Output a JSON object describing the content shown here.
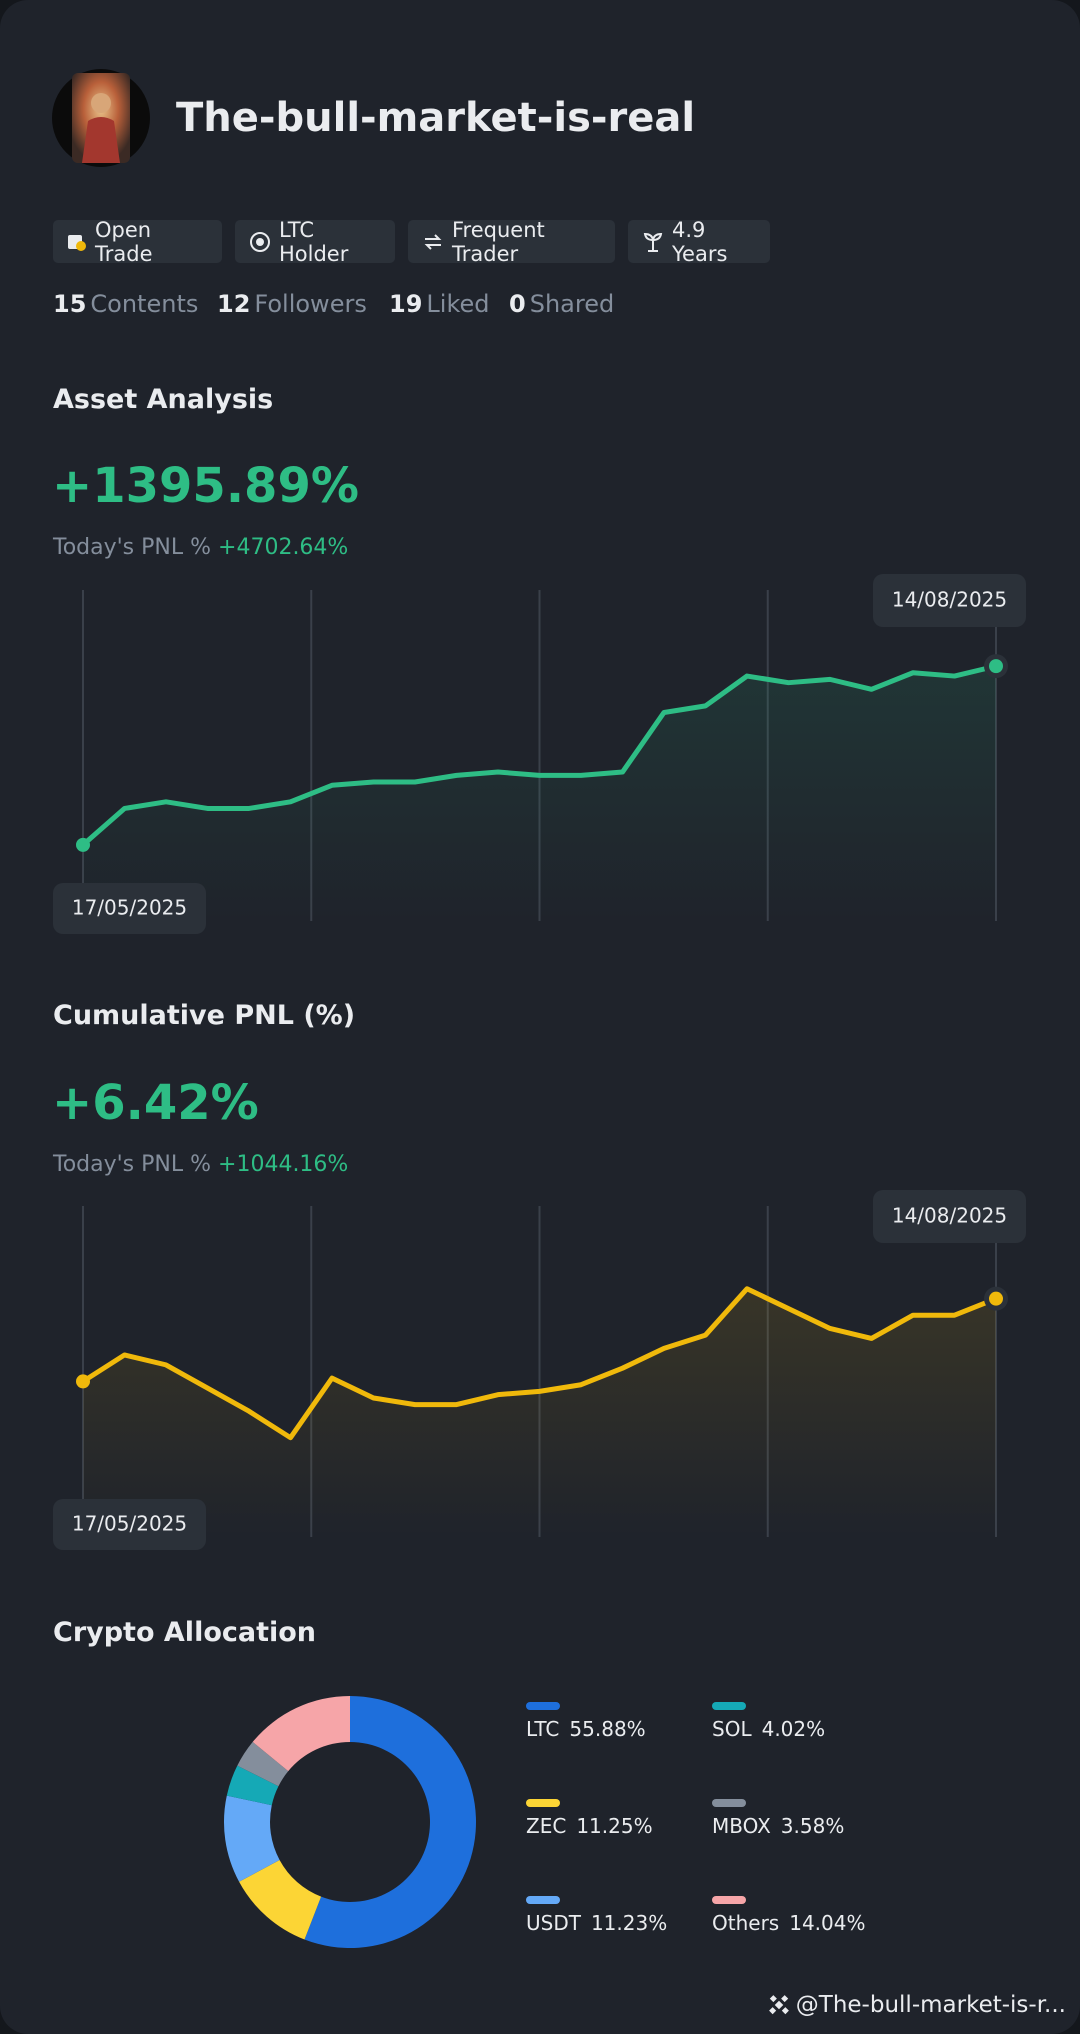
{
  "header": {
    "username": "The-bull-market-is-real"
  },
  "badges": [
    "Open Trade",
    "LTC Holder",
    "Frequent Trader",
    "4.9 Years"
  ],
  "stats": [
    {
      "value": 15,
      "label": "Contents"
    },
    {
      "value": 12,
      "label": "Followers"
    },
    {
      "value": 19,
      "label": "Liked"
    },
    {
      "value": 0,
      "label": "Shared"
    }
  ],
  "chart_data": [
    {
      "type": "line",
      "title": "Asset Analysis",
      "headline": "+1395.89%",
      "today_label": "Today's PNL %",
      "today_value": "+4702.64%",
      "start_label": "17/05/2025",
      "end_label": "14/08/2025",
      "color": "#2ebd85",
      "ylim": [
        0,
        100
      ],
      "values": [
        23,
        34,
        36,
        34,
        34,
        36,
        41,
        42,
        42,
        44,
        45,
        44,
        44,
        45,
        63,
        65,
        74,
        72,
        73,
        70,
        75,
        74,
        77
      ]
    },
    {
      "type": "line",
      "title": "Cumulative PNL (%)",
      "headline": "+6.42%",
      "today_label": "Today's PNL %",
      "today_value": "+1044.16%",
      "start_label": "17/05/2025",
      "end_label": "14/08/2025",
      "color": "#f0b90b",
      "ylim": [
        0,
        100
      ],
      "values": [
        47,
        55,
        52,
        45,
        38,
        30,
        48,
        42,
        40,
        40,
        43,
        44,
        46,
        51,
        57,
        61,
        75,
        69,
        63,
        60,
        67,
        67,
        72
      ]
    },
    {
      "type": "pie",
      "title": "Crypto Allocation",
      "categories": [
        "LTC",
        "ZEC",
        "USDT",
        "SOL",
        "MBOX",
        "Others"
      ],
      "values": [
        55.88,
        11.25,
        11.23,
        4.02,
        3.58,
        14.04
      ],
      "value_labels": [
        "55.88%",
        "11.25%",
        "11.23%",
        "4.02%",
        "3.58%",
        "14.04%"
      ],
      "colors": [
        "#1e6fdc",
        "#fcd535",
        "#64a9f7",
        "#15a9b6",
        "#848e9c",
        "#f6a5a8"
      ]
    }
  ],
  "footer": {
    "handle": "@The-bull-market-is-r..."
  }
}
